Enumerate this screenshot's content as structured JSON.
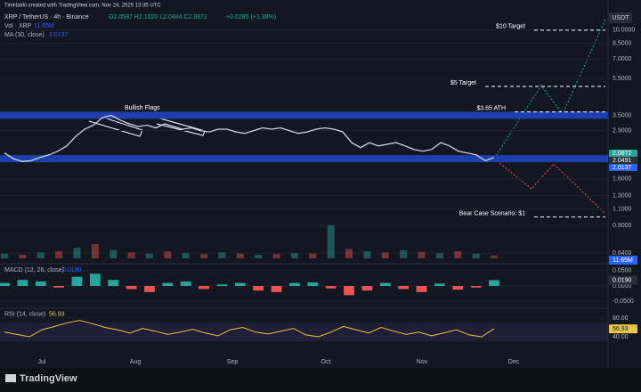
{
  "header": {
    "attribution": "TimHakki created with TradingView.com, Nov 24, 2025 13:35 UTC",
    "symbol": "XRP / TetherUS · 4h · Binance",
    "ohlc": "O2.0587 H2.1020 L2.0484 C2.0872",
    "change": "+0.0285 (+1.38%)",
    "volume_label": "Vol · XRP",
    "volume_value": "11.65M",
    "ma_label": "MA (30, close)",
    "ma_value": "2.0137",
    "currency": "USDT",
    "brand": "TradingView"
  },
  "chart_data": [
    {
      "type": "line",
      "scale": "log",
      "color": "#d1d4dc",
      "values": [
        2.2,
        2.05,
        1.98,
        2.0,
        2.08,
        2.15,
        2.25,
        2.4,
        2.7,
        2.95,
        3.1,
        3.4,
        3.5,
        3.3,
        3.15,
        3.05,
        3.1,
        3.0,
        3.15,
        3.05,
        2.95,
        3.0,
        2.9,
        2.85,
        2.95,
        2.95,
        2.85,
        2.8,
        2.9,
        3.0,
        2.95,
        3.0,
        2.9,
        2.8,
        2.85,
        2.95,
        3.0,
        2.95,
        2.85,
        2.5,
        2.35,
        2.5,
        2.4,
        2.45,
        2.5,
        2.4,
        2.3,
        2.25,
        2.3,
        2.5,
        2.4,
        2.25,
        2.2,
        2.15,
        2.0,
        2.08
      ],
      "ylim": [
        0.6,
        12.3
      ],
      "yticks": [
        {
          "value": 10,
          "label": "10.0000"
        },
        {
          "value": 8.5,
          "label": "8.5000"
        },
        {
          "value": 7,
          "label": "7.0000"
        },
        {
          "value": 5.5,
          "label": "5.5000"
        },
        {
          "value": 3.5,
          "label": "3.5000"
        },
        {
          "value": 2.9,
          "label": "2.9000"
        },
        {
          "value": 1.6,
          "label": "1.6000"
        },
        {
          "value": 1.3,
          "label": "1.3000"
        },
        {
          "value": 1.1,
          "label": "1.1000"
        },
        {
          "value": 0.9,
          "label": "0.9000"
        },
        {
          "value": 0.64,
          "label": "0.6400"
        }
      ],
      "zones": [
        3.5,
        2.05
      ],
      "zone_color": "#1e3fae",
      "annotations": [
        {
          "value": 10,
          "label": "$10 Target"
        },
        {
          "value": 5,
          "label": "$5 Target"
        },
        {
          "value": 3.65,
          "label": "$3.65 ATH"
        },
        {
          "value": 1,
          "label": "Bear Case Scenario: $1"
        }
      ],
      "note": "Bullish Flags",
      "price_labels": [
        {
          "value": 2.0872,
          "label": "2.0872",
          "color": "#26a69a"
        },
        {
          "value": 2.0491,
          "label": "2.0491",
          "color": "#2a2e39"
        },
        {
          "value": 2.0137,
          "label": "2.0137",
          "color": "#2962ff"
        }
      ],
      "x_labels": [
        "Jul",
        "Aug",
        "Sep",
        "Oct",
        "Nov",
        "Dec"
      ],
      "volume": {
        "values": [
          20,
          15,
          25,
          30,
          45,
          60,
          35,
          25,
          20,
          30,
          22,
          18,
          25,
          20,
          15,
          18,
          22,
          20,
          140,
          40,
          30,
          25,
          35,
          28,
          22,
          30,
          20,
          11.65
        ],
        "ylim": [
          0,
          150
        ],
        "last": {
          "value": 11.65,
          "label": "11.65M"
        }
      }
    },
    {
      "type": "bar",
      "title": "MACD (12, 26, close)",
      "last": {
        "value": 0.019,
        "label": "0.0190"
      },
      "values": [
        0.01,
        0.02,
        0.015,
        -0.005,
        0.03,
        0.04,
        0.02,
        -0.01,
        -0.02,
        0.01,
        0.015,
        -0.01,
        0.005,
        0.01,
        -0.015,
        -0.02,
        0.01,
        0.012,
        -0.008,
        -0.03,
        -0.015,
        0.01,
        -0.01,
        -0.02,
        0.008,
        -0.012,
        -0.005,
        0.019
      ],
      "ylim": [
        -0.07,
        0.07
      ],
      "yticks": [
        {
          "value": 0.05,
          "label": "0.0500"
        },
        {
          "value": 0,
          "label": "0.0000"
        },
        {
          "value": -0.05,
          "label": "-0.0500"
        }
      ]
    },
    {
      "type": "line",
      "title": "RSI (14, close)",
      "last": {
        "value": 56.93,
        "label": "56.93"
      },
      "color": "#e8c547",
      "values": [
        50,
        45,
        40,
        55,
        62,
        70,
        75,
        68,
        60,
        55,
        48,
        58,
        52,
        45,
        50,
        56,
        48,
        42,
        55,
        60,
        50,
        46,
        52,
        58,
        44,
        40,
        50,
        62,
        55,
        48,
        60,
        52,
        45,
        50,
        42,
        48,
        55,
        44,
        40,
        56.93
      ],
      "ylim": [
        0,
        100
      ],
      "band": [
        30,
        70
      ],
      "yticks": [
        {
          "value": 80,
          "label": "80.00"
        },
        {
          "value": 40,
          "label": "40.00"
        }
      ]
    }
  ]
}
